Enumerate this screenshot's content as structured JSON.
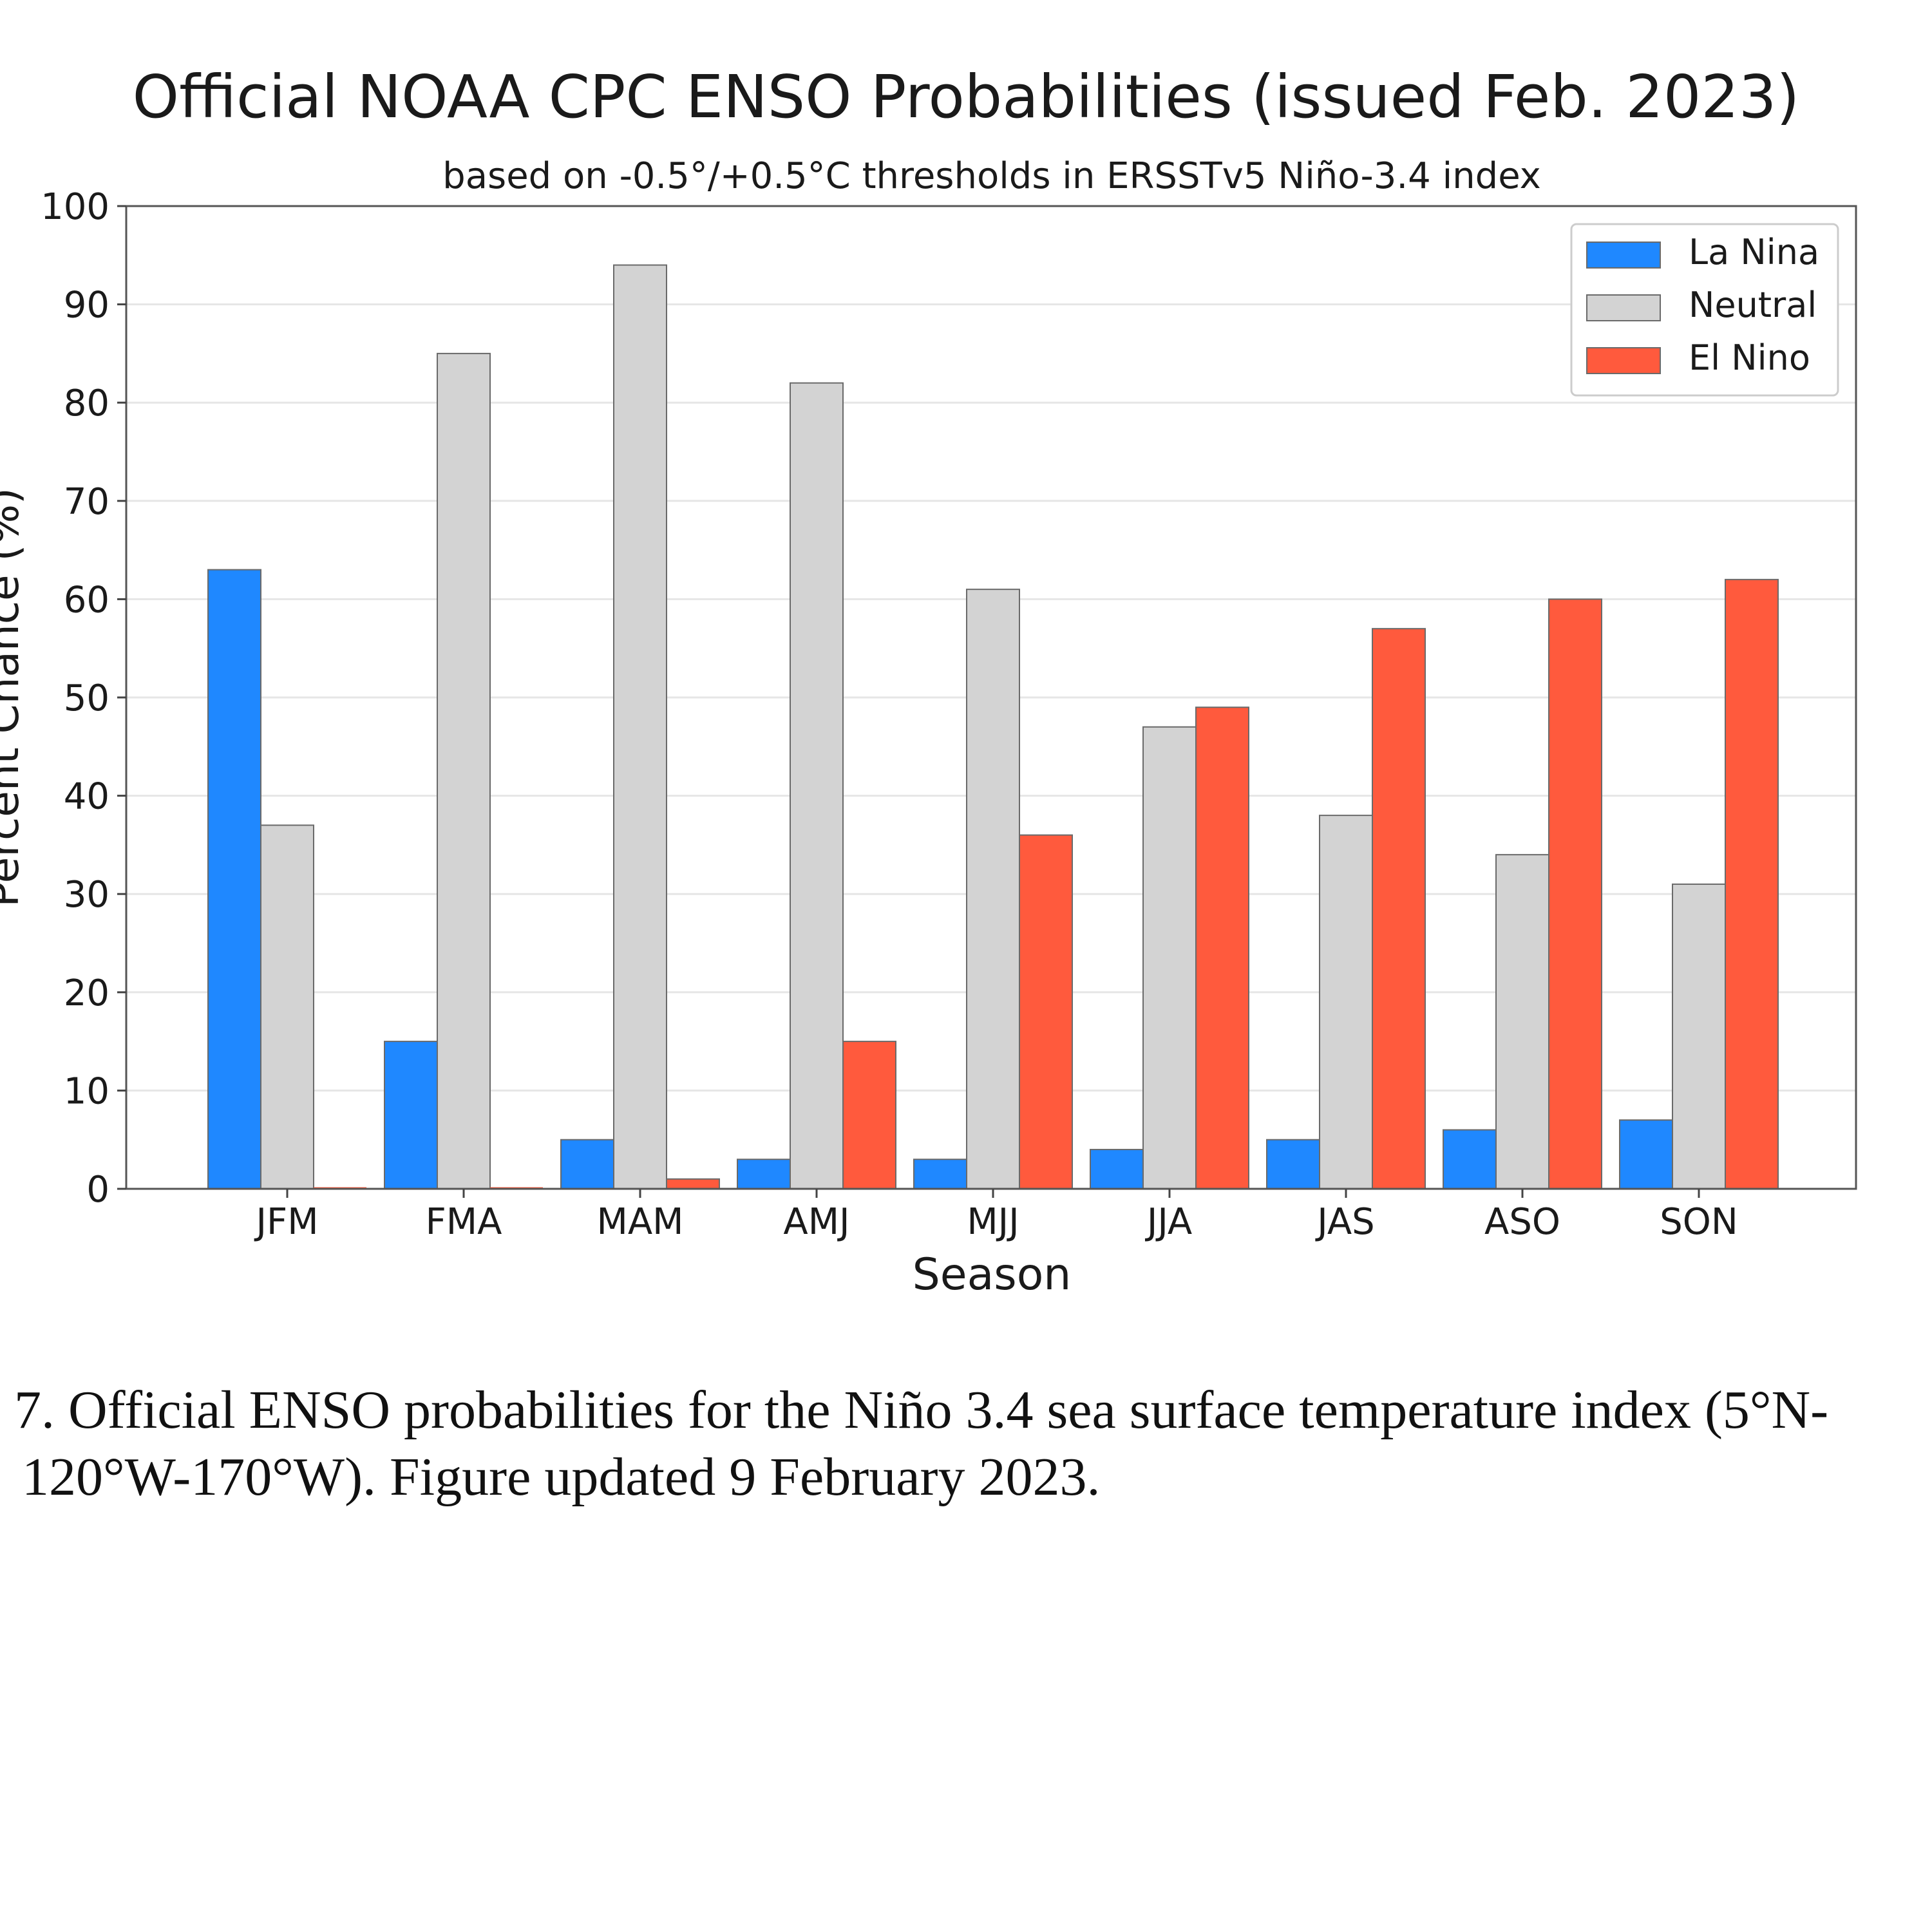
{
  "chart_data": {
    "type": "bar",
    "title": "Official NOAA CPC ENSO Probabilities (issued Feb. 2023)",
    "subtitle": "based on -0.5°/+0.5°C thresholds in ERSSTv5 Niño-3.4 index",
    "xlabel": "Season",
    "ylabel": "Percent Chance (%)",
    "ylim": [
      0,
      100
    ],
    "yticks": [
      0,
      10,
      20,
      30,
      40,
      50,
      60,
      70,
      80,
      90,
      100
    ],
    "grid": true,
    "legend_position": "top-right",
    "categories": [
      "JFM",
      "FMA",
      "MAM",
      "AMJ",
      "MJJ",
      "JJA",
      "JAS",
      "ASO",
      "SON"
    ],
    "series": [
      {
        "name": "La Nina",
        "color": "#1f88ff",
        "values": [
          63,
          15,
          5,
          3,
          3,
          4,
          5,
          6,
          7
        ]
      },
      {
        "name": "Neutral",
        "color": "#d3d3d3",
        "values": [
          37,
          85,
          94,
          82,
          61,
          47,
          38,
          34,
          31
        ]
      },
      {
        "name": "El Nino",
        "color": "#ff5a3d",
        "values": [
          0,
          0,
          1,
          15,
          36,
          49,
          57,
          60,
          62
        ]
      }
    ]
  },
  "caption": {
    "line1": "7. Official ENSO probabilities for the Niño 3.4 sea surface temperature index (5°N-",
    "line2": "120°W-170°W). Figure updated 9 February 2023."
  }
}
